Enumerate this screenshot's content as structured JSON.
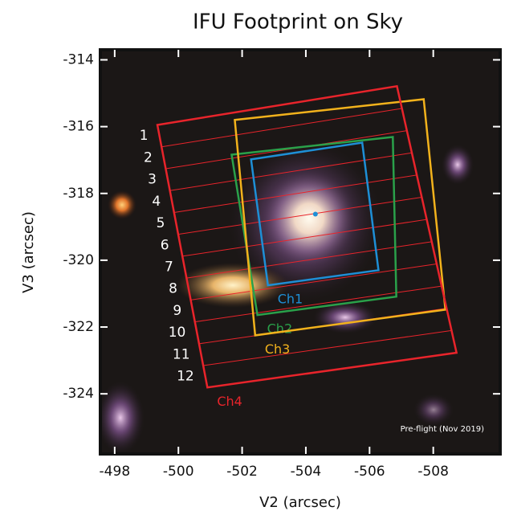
{
  "chart_data": {
    "type": "footprint",
    "title": "IFU Footprint on Sky",
    "x_label": "V2 (arcsec)",
    "y_label": "V3 (arcsec)",
    "xlim": [
      -497.55,
      -510.1
    ],
    "ylim": [
      -325.8,
      -313.7
    ],
    "xticks": [
      -498,
      -500,
      -502,
      -504,
      -506,
      -508
    ],
    "yticks": [
      -314,
      -316,
      -318,
      -320,
      -322,
      -324
    ],
    "series": [
      {
        "name": "Ch1",
        "color": "#1e8fd6",
        "x": [
          -502.28,
          -505.77,
          -506.28,
          -502.81
        ],
        "y": [
          -316.98,
          -316.48,
          -320.3,
          -320.75
        ]
      },
      {
        "name": "Ch2",
        "color": "#2aa14a",
        "x": [
          -501.67,
          -506.73,
          -506.84,
          -502.48
        ],
        "y": [
          -316.84,
          -316.31,
          -321.09,
          -321.64
        ]
      },
      {
        "name": "Ch3",
        "color": "#f2b21c",
        "x": [
          -501.77,
          -507.7,
          -508.38,
          -502.41
        ],
        "y": [
          -315.8,
          -315.18,
          -321.48,
          -322.25
        ]
      },
      {
        "name": "Ch4",
        "color": "#e8242b",
        "x": [
          -499.34,
          -506.86,
          -508.73,
          -500.91
        ],
        "y": [
          -315.95,
          -314.79,
          -322.77,
          -323.81
        ]
      }
    ],
    "slice_labels": [
      "1",
      "2",
      "3",
      "4",
      "5",
      "6",
      "7",
      "8",
      "9",
      "10",
      "11",
      "12"
    ],
    "marker": {
      "x": -504.3,
      "y": -318.62,
      "color": "#1e8fd6"
    },
    "annotation": "Pre-flight (Nov 2019)"
  }
}
